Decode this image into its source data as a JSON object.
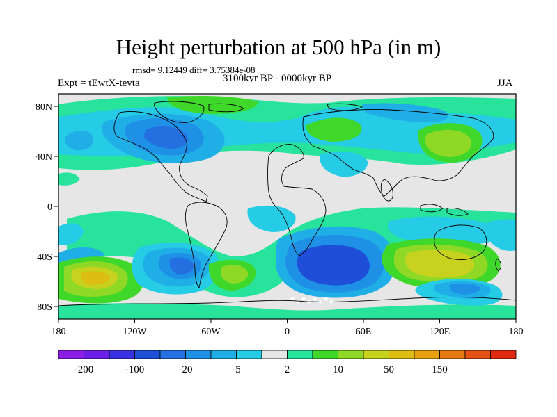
{
  "title": "Height perturbation at 500 hPa (in m)",
  "stats": "rmsd= 9.12449 diff= 3.75384e-08",
  "experiment": "Expt = tEwtX-tevta",
  "subtitle": "3100kyr BP - 0000kyr BP",
  "season": "JJA",
  "lon_ticks": [
    "180",
    "120W",
    "60W",
    "0",
    "60E",
    "120E",
    "180"
  ],
  "lat_ticks": [
    "80N",
    "40N",
    "0",
    "40S",
    "80S"
  ],
  "colorbar": {
    "colors": [
      "#8a1ee6",
      "#6a20e6",
      "#3a32e0",
      "#1f4ed8",
      "#2470e0",
      "#1e90e6",
      "#20aee6",
      "#26cbe6",
      "#e6e6e6",
      "#27e39c",
      "#3fd82a",
      "#90d826",
      "#c6d21e",
      "#dcbe12",
      "#e6a010",
      "#e67a12",
      "#e65214",
      "#e02a10"
    ],
    "labels": [
      "-200",
      "-100",
      "-20",
      "-5",
      "2",
      "10",
      "50",
      "150"
    ]
  },
  "palette": {
    "gray": "#e6e6e6",
    "green": "#27e39c",
    "lightblue": "#26cbe6",
    "skyblue": "#20aee6",
    "medblue": "#1e90e6",
    "blue": "#2470e0",
    "deepblue": "#1f4ed8",
    "lime": "#3fd82a",
    "yellowgreen": "#90d826",
    "yellow": "#c6d21e",
    "orange": "#dcbe12",
    "white": "#ffffff",
    "coast": "#000000"
  }
}
